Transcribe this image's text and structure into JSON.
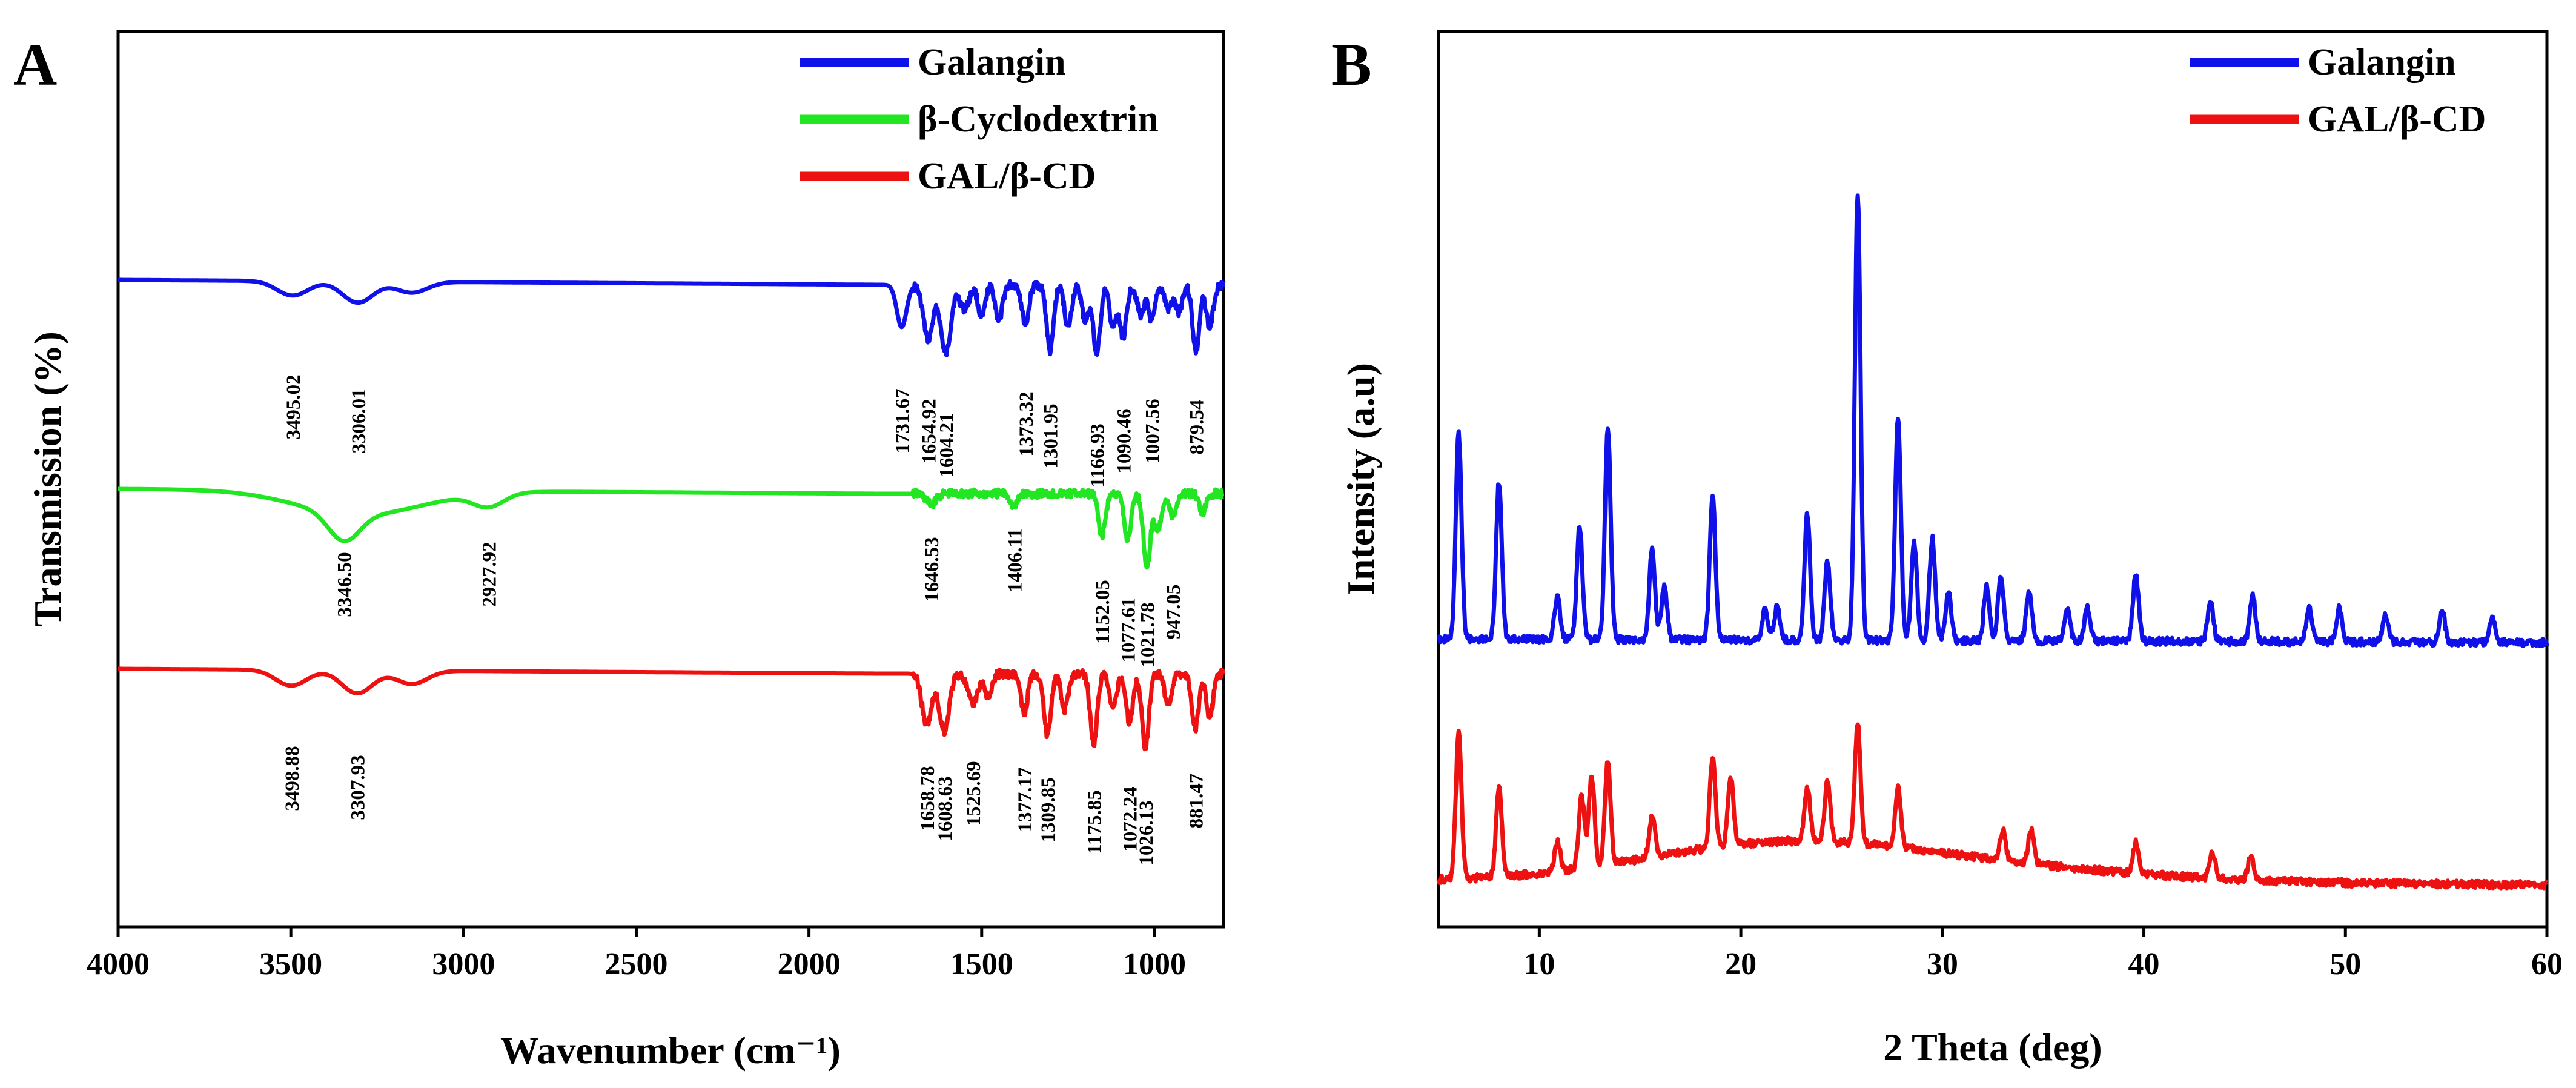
{
  "figure": {
    "panel_a_letter": "A",
    "panel_b_letter": "B"
  },
  "colors": {
    "galangin": "#1010e8",
    "cyclodextrin": "#22e622",
    "complex": "#ee1111"
  },
  "chart_data": [
    {
      "id": "A",
      "type": "line",
      "title": "",
      "xlabel": "Wavenumber (cm⁻¹)",
      "ylabel": "Transmission (%)",
      "xlim": [
        4000,
        800
      ],
      "xticks": [
        4000,
        3500,
        3000,
        2500,
        2000,
        1500,
        1000
      ],
      "yticks_shown": false,
      "legend_position": "top-right",
      "series": [
        {
          "name": "Galangin",
          "color": "#1010e8",
          "peaks": [
            "3495.02",
            "3306.01",
            "1731.67",
            "1654.92",
            "1604.21",
            "1373.32",
            "1301.95",
            "1166.93",
            "1090.46",
            "1007.56",
            "879.54"
          ]
        },
        {
          "name": "β-Cyclodextrin",
          "color": "#22e622",
          "peaks": [
            "3346.50",
            "2927.92",
            "1646.53",
            "1406.11",
            "1152.05",
            "1077.61",
            "1021.78",
            "947.05"
          ]
        },
        {
          "name": "GAL/β-CD",
          "color": "#ee1111",
          "peaks": [
            "3498.88",
            "3307.93",
            "1658.78",
            "1608.63",
            "1525.69",
            "1377.17",
            "1309.85",
            "1175.85",
            "1072.24",
            "1026.13",
            "881.47"
          ]
        }
      ]
    },
    {
      "id": "B",
      "type": "line",
      "title": "",
      "xlabel": "2 Theta (deg)",
      "ylabel": "Intensity (a.u)",
      "xlim": [
        5,
        60
      ],
      "xticks": [
        10,
        20,
        30,
        40,
        50,
        60
      ],
      "yticks_shown": false,
      "legend_position": "top-right",
      "series": [
        {
          "name": "Galangin",
          "color": "#1010e8",
          "major_peaks_2theta": [
            6.0,
            8.0,
            10.9,
            12.0,
            13.4,
            15.6,
            16.2,
            18.6,
            21.2,
            21.8,
            23.3,
            24.3,
            25.8,
            27.8,
            28.6,
            29.5,
            30.3,
            32.2,
            32.9,
            34.3,
            36.2,
            37.2,
            39.6,
            43.3,
            45.4,
            48.2,
            49.7,
            52.0,
            54.8,
            57.3
          ]
        },
        {
          "name": "GAL/β-CD",
          "color": "#ee1111",
          "major_peaks_2theta": [
            6.0,
            8.0,
            10.9,
            12.1,
            12.6,
            13.4,
            15.6,
            18.6,
            19.5,
            23.3,
            24.3,
            25.8,
            27.8,
            33.0,
            34.4,
            39.6,
            43.4,
            45.3
          ]
        }
      ]
    }
  ]
}
